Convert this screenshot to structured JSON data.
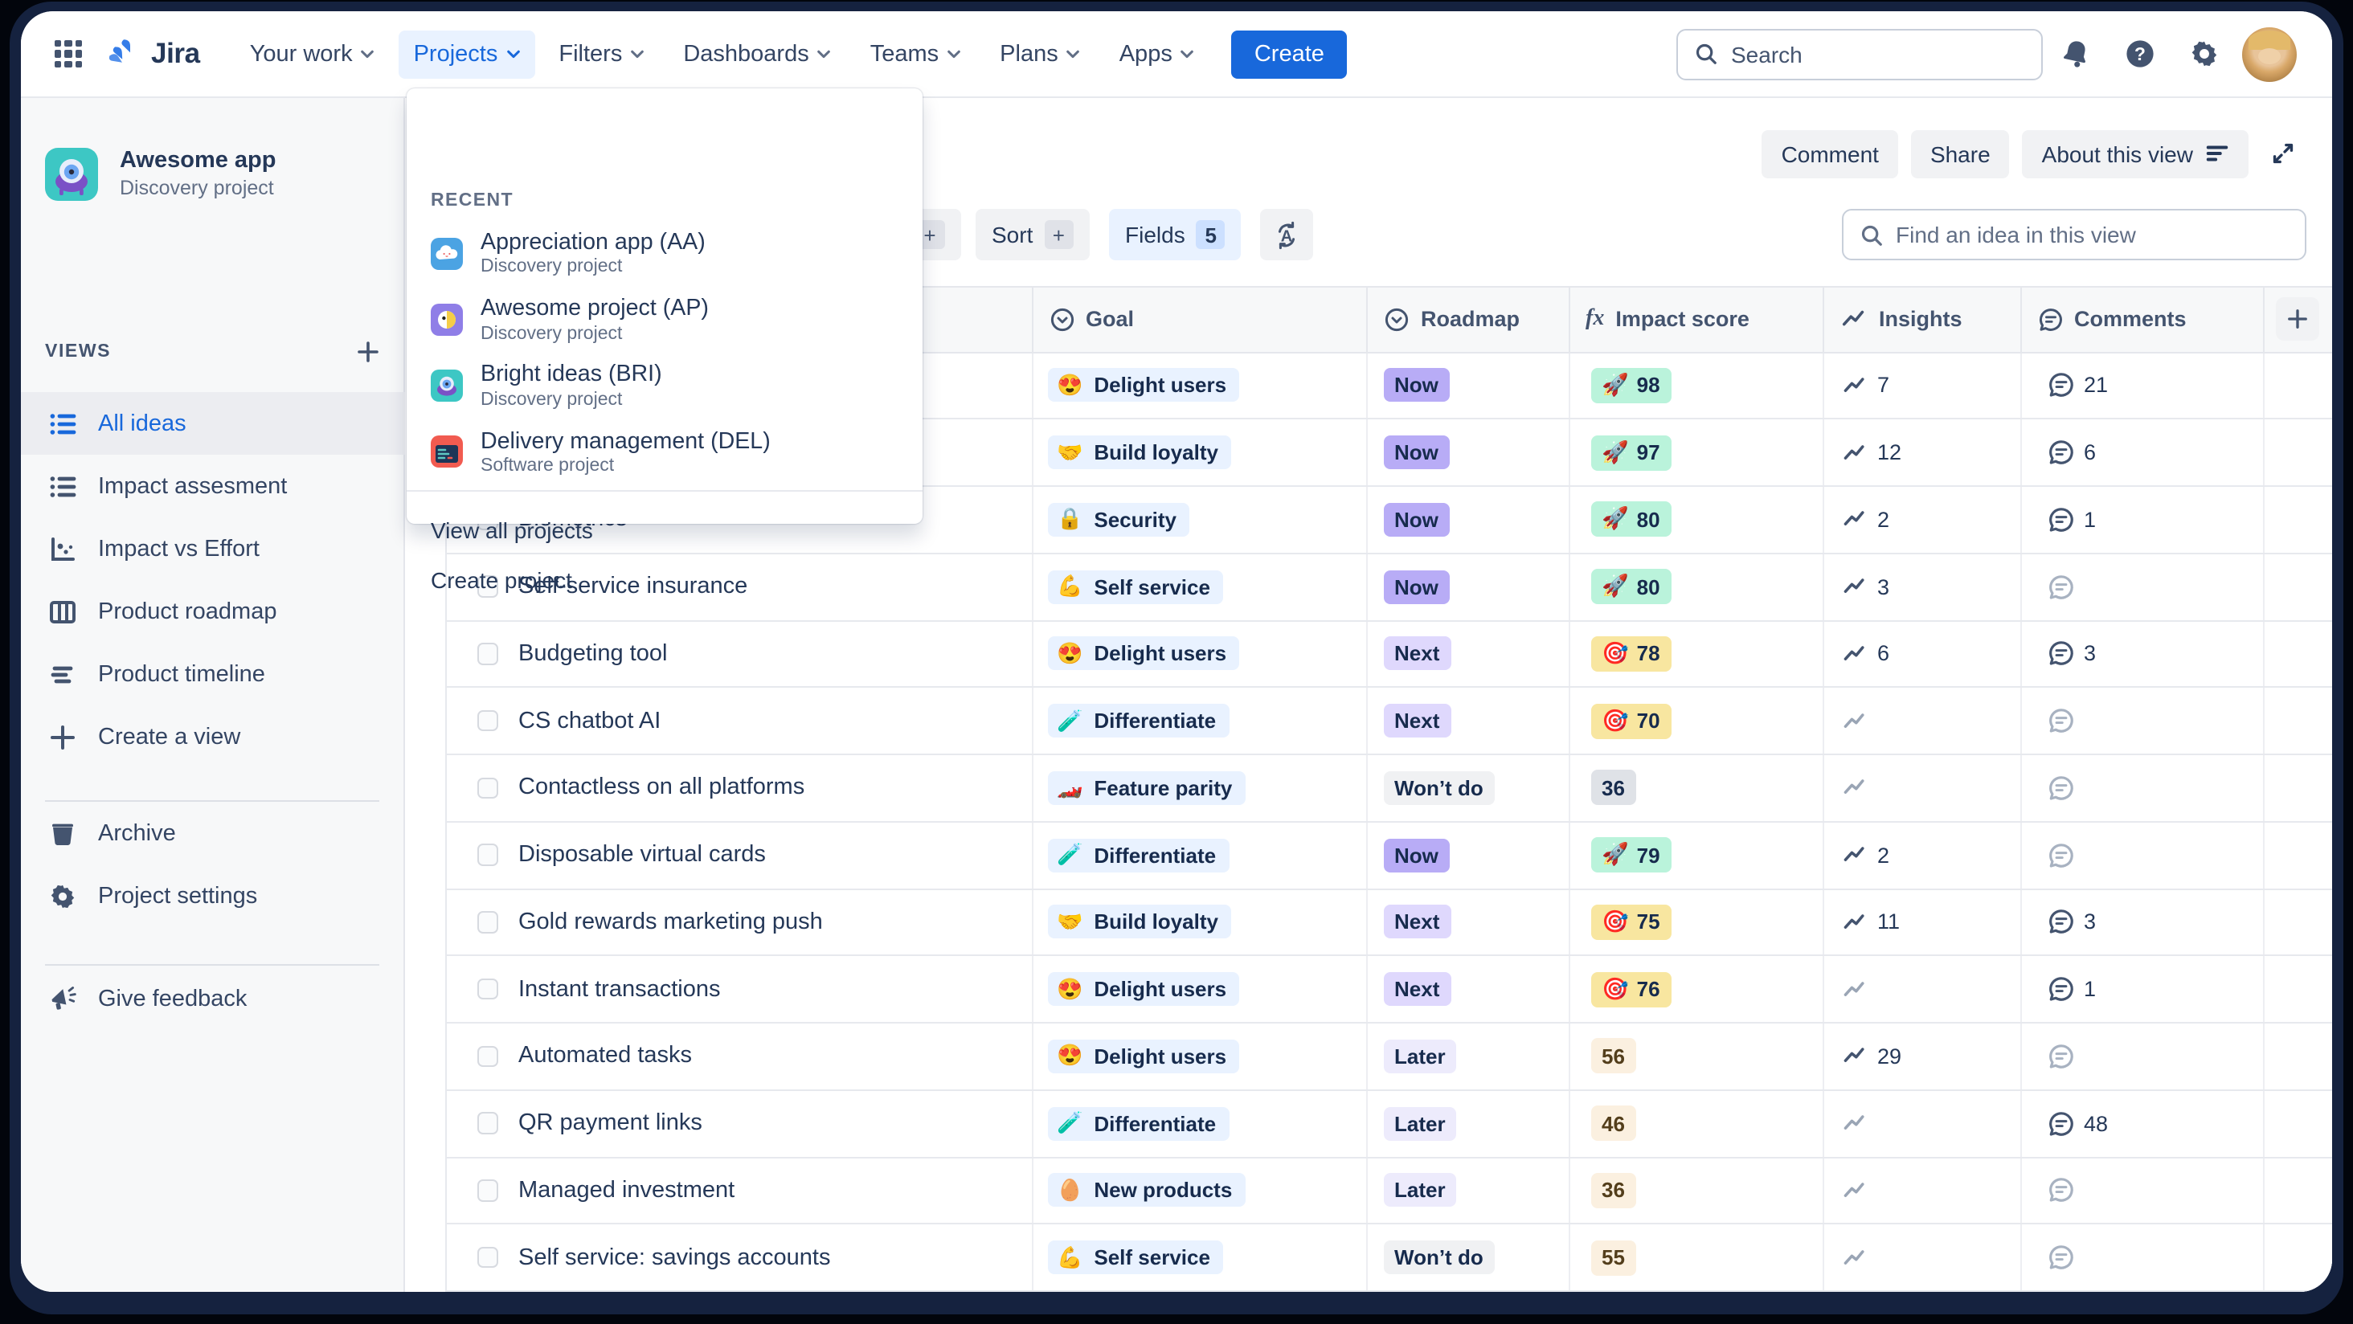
{
  "nav": {
    "logo": "Jira",
    "items": [
      {
        "label": "Your work",
        "active": false
      },
      {
        "label": "Projects",
        "active": true
      },
      {
        "label": "Filters",
        "active": false
      },
      {
        "label": "Dashboards",
        "active": false
      },
      {
        "label": "Teams",
        "active": false
      },
      {
        "label": "Plans",
        "active": false
      },
      {
        "label": "Apps",
        "active": false
      }
    ],
    "create_label": "Create",
    "search_placeholder": "Search"
  },
  "sidebar": {
    "project_name": "Awesome app",
    "project_type": "Discovery project",
    "views_heading": "VIEWS",
    "views": [
      {
        "label": "All ideas",
        "icon": "list",
        "selected": true
      },
      {
        "label": "Impact assesment",
        "icon": "list",
        "selected": false
      },
      {
        "label": "Impact vs Effort",
        "icon": "scatter",
        "selected": false
      },
      {
        "label": "Product roadmap",
        "icon": "columns",
        "selected": false
      },
      {
        "label": "Product timeline",
        "icon": "timeline",
        "selected": false
      },
      {
        "label": "Create a view",
        "icon": "plus",
        "selected": false
      }
    ],
    "tools": [
      {
        "label": "Archive",
        "icon": "trash"
      },
      {
        "label": "Project settings",
        "icon": "gear"
      }
    ],
    "feedback_label": "Give feedback"
  },
  "projects_menu": {
    "recent_heading": "RECENT",
    "items": [
      {
        "name": "Appreciation app (AA)",
        "type": "Discovery project",
        "icon": "cloud",
        "color": "#4BA3E3"
      },
      {
        "name": "Awesome project (AP)",
        "type": "Discovery project",
        "icon": "parrot",
        "color": "#8F7EE7"
      },
      {
        "name": "Bright ideas (BRI)",
        "type": "Discovery project",
        "icon": "alien",
        "color": "#3DC7C4"
      },
      {
        "name": "Delivery management (DEL)",
        "type": "Software project",
        "icon": "code",
        "color": "#F15B50"
      }
    ],
    "links": [
      "View all projects",
      "Create project"
    ]
  },
  "view_actions": {
    "comment": "Comment",
    "share": "Share",
    "about": "About this view"
  },
  "toolbar": {
    "hidden_chip_label": "+",
    "sort_label": "Sort",
    "sort_plus": "+",
    "fields_label": "Fields",
    "fields_count": "5",
    "find_placeholder": "Find an idea in this view"
  },
  "table": {
    "columns": [
      "",
      "Goal",
      "Roadmap",
      "Impact score",
      "Insights",
      "Comments"
    ],
    "rows": [
      {
        "title": "",
        "goal": {
          "emoji": "😍",
          "label": "Delight users"
        },
        "roadmap": "Now",
        "impact": {
          "kind": "rocket",
          "value": "98"
        },
        "insights": "7",
        "comments": "21"
      },
      {
        "title": "",
        "goal": {
          "emoji": "🤝",
          "label": "Build loyalty"
        },
        "roadmap": "Now",
        "impact": {
          "kind": "rocket",
          "value": "97"
        },
        "insights": "12",
        "comments": "6"
      },
      {
        "title": "Biometrics",
        "goal": {
          "emoji": "🔒",
          "label": "Security"
        },
        "roadmap": "Now",
        "impact": {
          "kind": "rocket",
          "value": "80"
        },
        "insights": "2",
        "comments": "1"
      },
      {
        "title": "Self-service insurance",
        "goal": {
          "emoji": "💪",
          "label": "Self service"
        },
        "roadmap": "Now",
        "impact": {
          "kind": "rocket",
          "value": "80"
        },
        "insights": "3",
        "comments": null
      },
      {
        "title": "Budgeting tool",
        "goal": {
          "emoji": "😍",
          "label": "Delight users"
        },
        "roadmap": "Next",
        "impact": {
          "kind": "target",
          "value": "78"
        },
        "insights": "6",
        "comments": "3"
      },
      {
        "title": "CS chatbot AI",
        "goal": {
          "emoji": "🧪",
          "label": "Differentiate"
        },
        "roadmap": "Next",
        "impact": {
          "kind": "target",
          "value": "70"
        },
        "insights": null,
        "comments": null
      },
      {
        "title": "Contactless on all platforms",
        "goal": {
          "emoji": "🏎️",
          "label": "Feature parity"
        },
        "roadmap": "Won’t do",
        "impact": {
          "kind": "gray",
          "value": "36"
        },
        "insights": null,
        "comments": null
      },
      {
        "title": "Disposable virtual cards",
        "goal": {
          "emoji": "🧪",
          "label": "Differentiate"
        },
        "roadmap": "Now",
        "impact": {
          "kind": "rocket",
          "value": "79"
        },
        "insights": "2",
        "comments": null
      },
      {
        "title": "Gold rewards marketing push",
        "goal": {
          "emoji": "🤝",
          "label": "Build loyalty"
        },
        "roadmap": "Next",
        "impact": {
          "kind": "target",
          "value": "75"
        },
        "insights": "11",
        "comments": "3"
      },
      {
        "title": "Instant transactions",
        "goal": {
          "emoji": "😍",
          "label": "Delight users"
        },
        "roadmap": "Next",
        "impact": {
          "kind": "target",
          "value": "76"
        },
        "insights": null,
        "comments": "1"
      },
      {
        "title": "Automated tasks",
        "goal": {
          "emoji": "😍",
          "label": "Delight users"
        },
        "roadmap": "Later",
        "impact": {
          "kind": "plain",
          "value": "56"
        },
        "insights": "29",
        "comments": null
      },
      {
        "title": "QR payment links",
        "goal": {
          "emoji": "🧪",
          "label": "Differentiate"
        },
        "roadmap": "Later",
        "impact": {
          "kind": "plain",
          "value": "46"
        },
        "insights": null,
        "comments": "48"
      },
      {
        "title": "Managed investment",
        "goal": {
          "emoji": "🥚",
          "label": "New products"
        },
        "roadmap": "Later",
        "impact": {
          "kind": "plain",
          "value": "36"
        },
        "insights": null,
        "comments": null
      },
      {
        "title": "Self service: savings accounts",
        "goal": {
          "emoji": "💪",
          "label": "Self service"
        },
        "roadmap": "Won’t do",
        "impact": {
          "kind": "plain",
          "value": "55"
        },
        "insights": null,
        "comments": null
      }
    ]
  },
  "colors": {
    "accent_blue": "#1868DB",
    "chip_blue_bg": "#E9F2FF",
    "roadmap_now": "#B8ACF6",
    "roadmap_next": "#DFD8FD",
    "roadmap_later": "#EDEBFC",
    "roadmap_wont": "#F0F1F3",
    "impact_green": "#BAF3DB",
    "impact_yellow": "#F8E6A0",
    "impact_gray": "#DFE2E7",
    "impact_cream": "#FBF0E0",
    "impact_cream_text": "#533E1B"
  }
}
